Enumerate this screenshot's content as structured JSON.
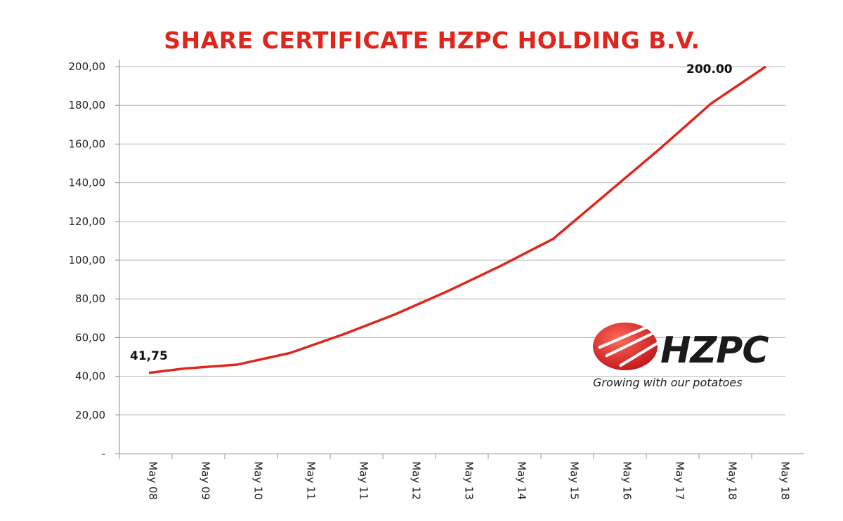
{
  "chart_data": {
    "type": "line",
    "title": "SHARE CERTIFICATE HZPC HOLDING B.V.",
    "xlabel": "",
    "ylabel": "",
    "categories": [
      "May 08",
      "May 09",
      "May 10",
      "May 11",
      "May 11",
      "May 12",
      "May 13",
      "May 14",
      "May 15",
      "May 16",
      "May 17",
      "May 18",
      "May 18"
    ],
    "series": [
      {
        "values": [
          41.75,
          44,
          46,
          52,
          61.5,
          72,
          84,
          97,
          111,
          134,
          157,
          181,
          200
        ]
      }
    ],
    "ylim": [
      0,
      200
    ],
    "yticks": [
      "-",
      "20,00",
      "40,00",
      "60,00",
      "80,00",
      "100,00",
      "120,00",
      "140,00",
      "160,00",
      "180,00",
      "200,00"
    ],
    "data_labels": {
      "first": "41,75",
      "last": "200.00"
    },
    "grid": true,
    "line_color": "#e0261c"
  },
  "logo": {
    "word": "HZPC",
    "tagline": "Growing with our potatoes",
    "color": "#e0261c"
  }
}
